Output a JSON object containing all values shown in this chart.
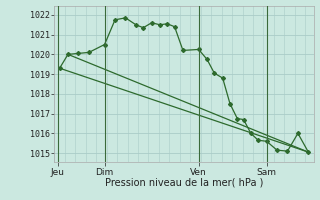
{
  "bg_color": "#cbe8e0",
  "grid_color": "#aaccc8",
  "line_color": "#2d6a2d",
  "xlabel": "Pression niveau de la mer( hPa )",
  "day_labels": [
    "Jeu",
    "Dim",
    "Ven",
    "Sam"
  ],
  "day_positions": [
    0,
    4.5,
    13.5,
    20
  ],
  "vline_positions": [
    0,
    4.5,
    13.5,
    20
  ],
  "xlim": [
    -0.3,
    24.5
  ],
  "ylim": [
    1014.55,
    1022.45
  ],
  "yticks": [
    1015,
    1016,
    1017,
    1018,
    1019,
    1020,
    1021,
    1022
  ],
  "series_main_x": [
    0.2,
    1.0,
    2.0,
    3.0,
    4.5,
    5.5,
    6.5,
    7.5,
    8.2,
    9.0,
    9.8,
    10.5,
    11.2,
    12.0,
    13.5,
    14.3,
    15.0,
    15.8,
    16.5,
    17.2,
    17.8,
    18.5,
    19.2,
    20.0,
    21.0,
    22.0,
    23.0,
    24.0
  ],
  "series_main_y": [
    1019.3,
    1020.0,
    1020.05,
    1020.1,
    1020.5,
    1021.75,
    1021.85,
    1021.5,
    1021.35,
    1021.6,
    1021.5,
    1021.55,
    1021.4,
    1020.2,
    1020.25,
    1019.75,
    1019.05,
    1018.8,
    1017.5,
    1016.75,
    1016.7,
    1016.0,
    1015.65,
    1015.6,
    1015.15,
    1015.1,
    1016.0,
    1015.05
  ],
  "series_line1_x": [
    0.2,
    24.0
  ],
  "series_line1_y": [
    1019.3,
    1015.05
  ],
  "series_line2_x": [
    1.0,
    24.0
  ],
  "series_line2_y": [
    1020.0,
    1015.05
  ]
}
